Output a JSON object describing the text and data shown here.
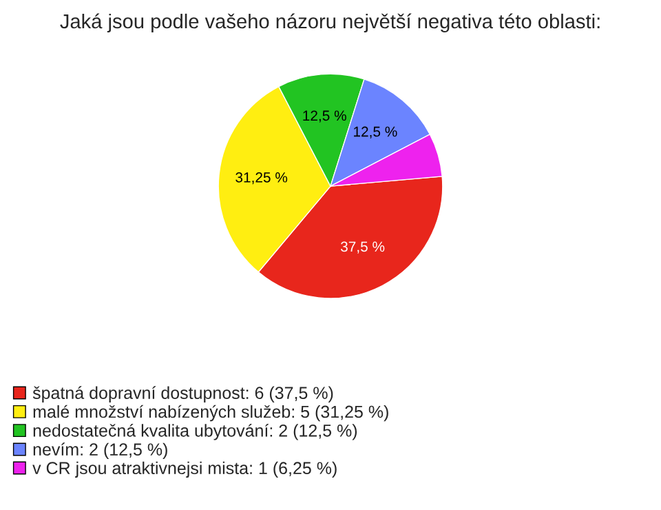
{
  "chart_data": {
    "type": "pie",
    "title": "Jaká jsou podle vašeho názoru největší negativa této oblasti:",
    "categories": [
      "špatná dopravní dostupnost: 6 (37,5 %)",
      "malé množství nabízených služeb: 5 (31,25 %)",
      "nedostatečná kvalita ubytování: 2 (12,5 %)",
      "nevím: 2 (12,5 %)",
      "v CR jsou atraktivnejsi mista: 1 (6,25 %)"
    ],
    "values": [
      37.5,
      31.25,
      12.5,
      12.5,
      6.25
    ],
    "colors": [
      "#e8261c",
      "#ffee11",
      "#22c422",
      "#6b84ff",
      "#ee22ee"
    ],
    "value_labels": [
      "37,5 %",
      "31,25 %",
      "12,5 %",
      "12,5 %",
      null
    ],
    "legend": "bottom left"
  }
}
